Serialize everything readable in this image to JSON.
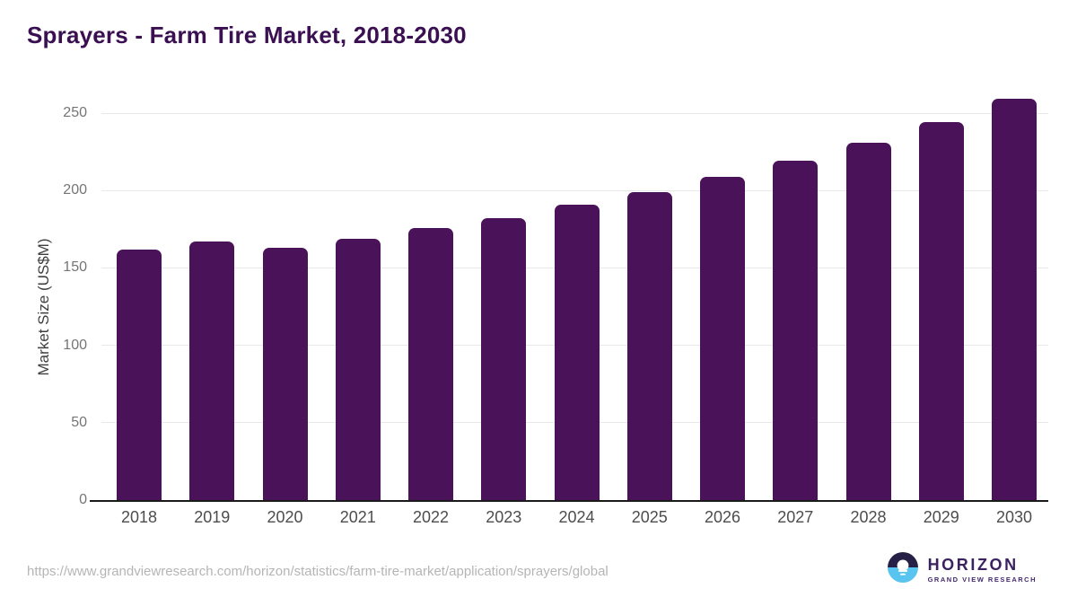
{
  "page": {
    "title": "Sprayers - Farm Tire Market, 2018-2030",
    "source_url": "https://www.grandviewresearch.com/horizon/statistics/farm-tire-market/application/sprayers/global"
  },
  "logo": {
    "name": "HORIZON",
    "subtitle": "GRAND VIEW RESEARCH",
    "mark": "sun-over-water-icon",
    "colors": {
      "dark": "#262046",
      "blue": "#59c4f0",
      "text": "#3a2260"
    }
  },
  "colors": {
    "bar": "#4a1259",
    "title_text": "#3b1053",
    "axis_line": "#1a1a1a",
    "gridline": "#e8e8e8",
    "tick_text": "#757575"
  },
  "chart_data": {
    "type": "bar",
    "title": "Sprayers - Farm Tire Market, 2018-2030",
    "categories": [
      "2018",
      "2019",
      "2020",
      "2021",
      "2022",
      "2023",
      "2024",
      "2025",
      "2026",
      "2027",
      "2028",
      "2029",
      "2030"
    ],
    "values": [
      162,
      167,
      163,
      169,
      176,
      182,
      191,
      199,
      209,
      219,
      231,
      244,
      259
    ],
    "xlabel": "",
    "ylabel": "Market Size (US$M)",
    "ylim": [
      0,
      250
    ],
    "yticks": [
      0,
      50,
      100,
      150,
      200,
      250
    ],
    "grid": true,
    "legend": false,
    "bar_color": "#4a1259"
  }
}
